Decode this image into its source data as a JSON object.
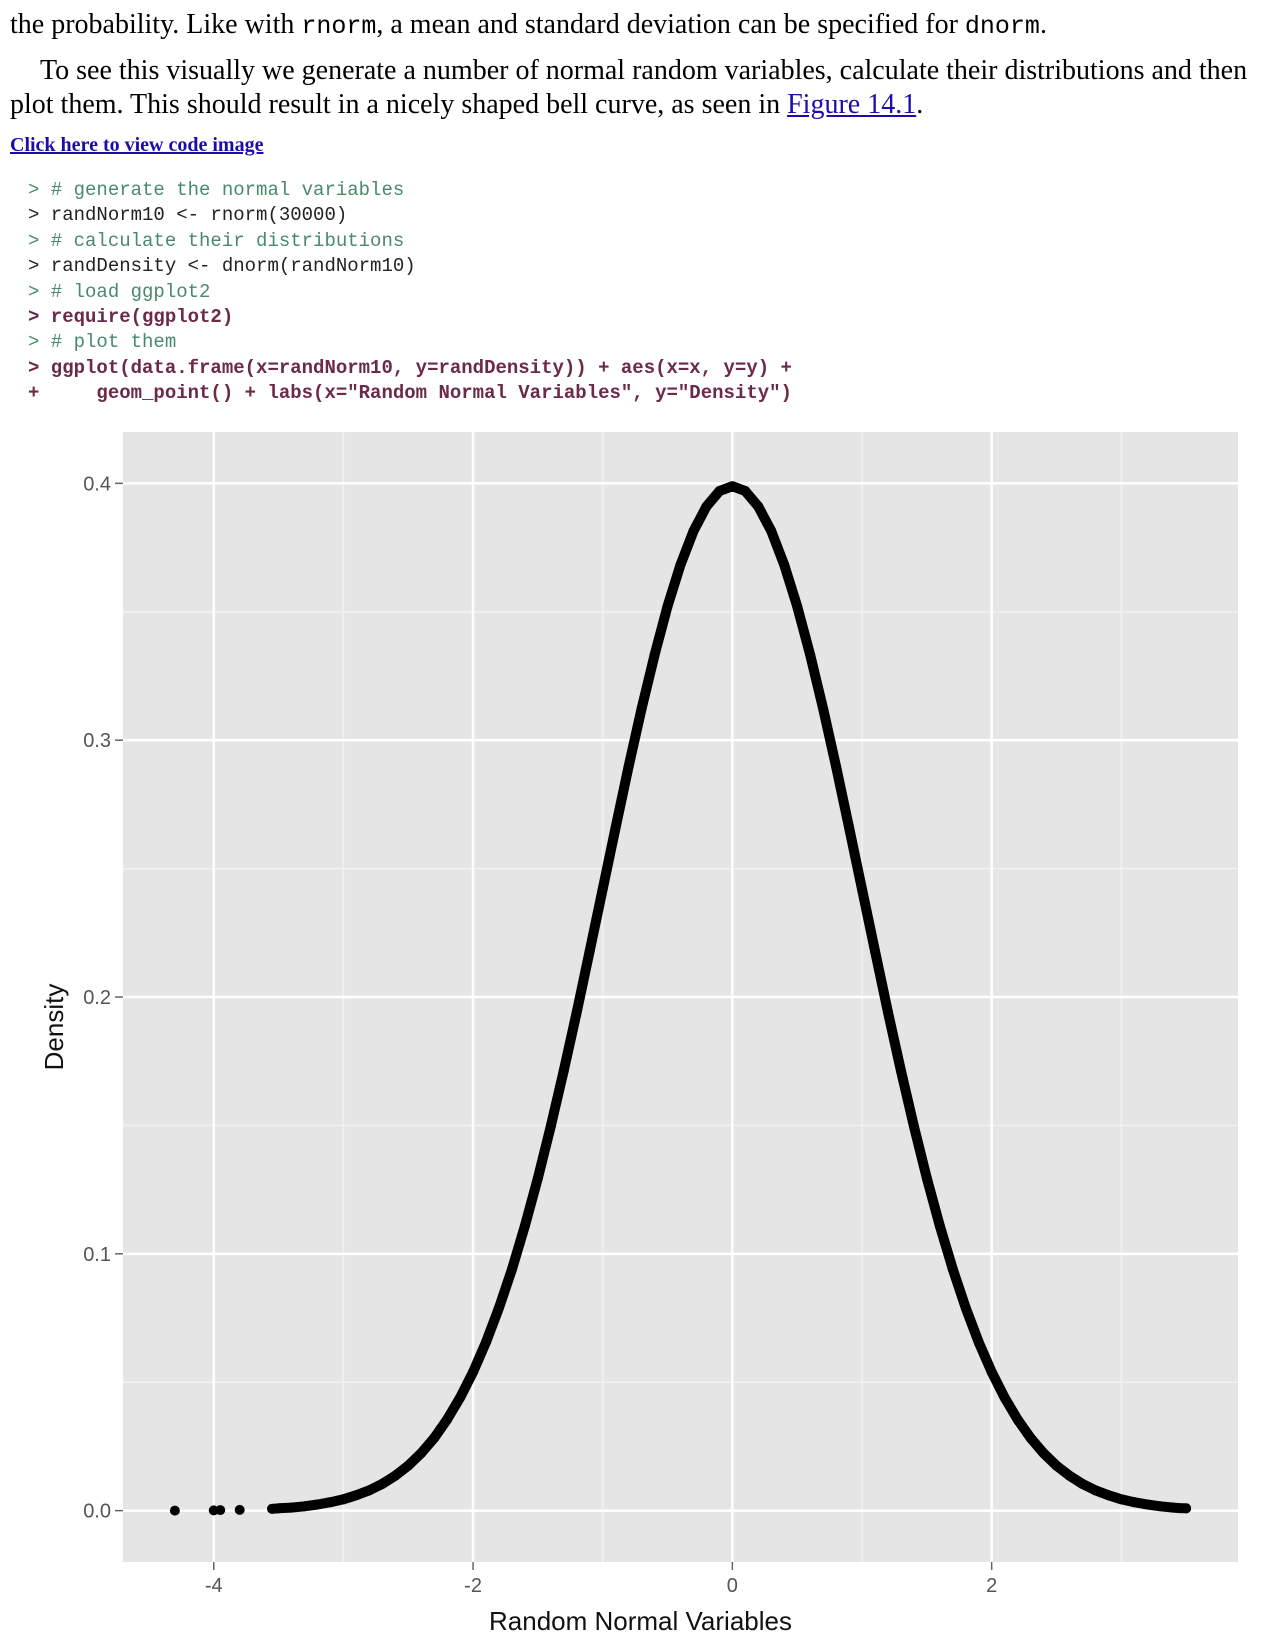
{
  "paragraphs": {
    "p1_a": "the probability. Like with ",
    "p1_code1": "rnorm",
    "p1_b": ", a mean and standard deviation can be specified for ",
    "p1_code2": "dnorm",
    "p1_c": ".",
    "p2_a": "To see this visually we generate a number of normal random variables, calculate their distributions and then plot them. This should result in a nicely shaped bell curve, as seen in ",
    "p2_link": "Figure 14.1",
    "p2_b": "."
  },
  "code_link": "Click here to view code image",
  "code_lines": [
    "> # generate the normal variables",
    "> randNorm10 <- rnorm(30000)",
    "> # calculate their distributions",
    "> randDensity <- dnorm(randNorm10)",
    "> # load ggplot2",
    "> require(ggplot2)",
    "> # plot them",
    "> ggplot(data.frame(x=randNorm10, y=randDensity)) + aes(x=x, y=y) +",
    "+     geom_point() + labs(x=\"Random Normal Variables\", y=\"Density\")"
  ],
  "chart_data": {
    "type": "scatter",
    "description_values": "points (x, y) with y = dnorm(x)",
    "x_min_observed": -4.3,
    "x_max_observed": 3.5,
    "points": [
      [
        -4.3,
        0.0
      ],
      [
        -4.0,
        0.0001
      ],
      [
        -3.95,
        0.0002
      ],
      [
        -3.8,
        0.0003
      ],
      [
        -3.55,
        0.0007
      ],
      [
        -3.5,
        0.0009
      ],
      [
        -3.4,
        0.0012
      ],
      [
        -3.3,
        0.0017
      ],
      [
        -3.2,
        0.0024
      ],
      [
        -3.1,
        0.0033
      ],
      [
        -3.0,
        0.0044
      ],
      [
        -2.9,
        0.006
      ],
      [
        -2.8,
        0.0079
      ],
      [
        -2.7,
        0.0104
      ],
      [
        -2.6,
        0.0136
      ],
      [
        -2.5,
        0.0175
      ],
      [
        -2.4,
        0.0224
      ],
      [
        -2.3,
        0.0283
      ],
      [
        -2.2,
        0.0355
      ],
      [
        -2.1,
        0.044
      ],
      [
        -2.0,
        0.054
      ],
      [
        -1.9,
        0.0656
      ],
      [
        -1.8,
        0.079
      ],
      [
        -1.7,
        0.094
      ],
      [
        -1.6,
        0.1109
      ],
      [
        -1.5,
        0.1295
      ],
      [
        -1.4,
        0.1497
      ],
      [
        -1.3,
        0.1714
      ],
      [
        -1.2,
        0.1942
      ],
      [
        -1.1,
        0.2179
      ],
      [
        -1.0,
        0.242
      ],
      [
        -0.9,
        0.2661
      ],
      [
        -0.8,
        0.2897
      ],
      [
        -0.7,
        0.3123
      ],
      [
        -0.6,
        0.3332
      ],
      [
        -0.5,
        0.3521
      ],
      [
        -0.4,
        0.3683
      ],
      [
        -0.3,
        0.3814
      ],
      [
        -0.2,
        0.391
      ],
      [
        -0.1,
        0.397
      ],
      [
        0.0,
        0.3989
      ],
      [
        0.1,
        0.397
      ],
      [
        0.2,
        0.391
      ],
      [
        0.3,
        0.3814
      ],
      [
        0.4,
        0.3683
      ],
      [
        0.5,
        0.3521
      ],
      [
        0.6,
        0.3332
      ],
      [
        0.7,
        0.3123
      ],
      [
        0.8,
        0.2897
      ],
      [
        0.9,
        0.2661
      ],
      [
        1.0,
        0.242
      ],
      [
        1.1,
        0.2179
      ],
      [
        1.2,
        0.1942
      ],
      [
        1.3,
        0.1714
      ],
      [
        1.4,
        0.1497
      ],
      [
        1.5,
        0.1295
      ],
      [
        1.6,
        0.1109
      ],
      [
        1.7,
        0.094
      ],
      [
        1.8,
        0.079
      ],
      [
        1.9,
        0.0656
      ],
      [
        2.0,
        0.054
      ],
      [
        2.1,
        0.044
      ],
      [
        2.2,
        0.0355
      ],
      [
        2.3,
        0.0283
      ],
      [
        2.4,
        0.0224
      ],
      [
        2.5,
        0.0175
      ],
      [
        2.6,
        0.0136
      ],
      [
        2.7,
        0.0104
      ],
      [
        2.8,
        0.0079
      ],
      [
        2.9,
        0.006
      ],
      [
        3.0,
        0.0044
      ],
      [
        3.1,
        0.0033
      ],
      [
        3.2,
        0.0024
      ],
      [
        3.3,
        0.0017
      ],
      [
        3.4,
        0.0012
      ],
      [
        3.45,
        0.001
      ],
      [
        3.5,
        0.0009
      ]
    ],
    "xlabel": "Random Normal Variables",
    "ylabel": "Density",
    "xlim": [
      -4.7,
      3.9
    ],
    "ylim": [
      -0.02,
      0.42
    ],
    "x_ticks": [
      -4,
      -2,
      0,
      2
    ],
    "x_tick_labels": [
      "-4",
      "-2",
      "0",
      "2"
    ],
    "y_ticks": [
      0.0,
      0.1,
      0.2,
      0.3,
      0.4
    ],
    "y_tick_labels": [
      "0.0",
      "0.1",
      "0.2",
      "0.3",
      "0.4"
    ],
    "grid": true,
    "panel_color": "#e5e5e5",
    "grid_color": "#ffffff",
    "point_color": "#000000"
  }
}
